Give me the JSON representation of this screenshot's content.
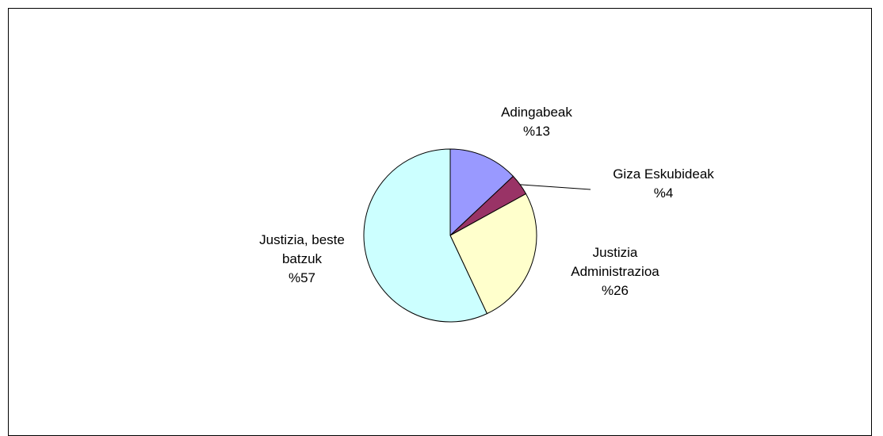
{
  "chart_data": {
    "type": "pie",
    "title": "",
    "start_angle_deg": 0,
    "direction": "clockwise",
    "slices": [
      {
        "name": "Adingabeak",
        "value": 13,
        "label": "%13",
        "color": "#9999ff"
      },
      {
        "name": "Giza Eskubideak",
        "value": 4,
        "label": "%4",
        "color": "#993366"
      },
      {
        "name": "Justizia Administrazioa",
        "value": 26,
        "label": "%26",
        "color": "#ffffcc"
      },
      {
        "name": "Justizia, beste batzuk",
        "value": 57,
        "label": "%57",
        "color": "#ccffff"
      }
    ],
    "legend": "none",
    "label_lines": [
      "Justizia",
      "Administrazioa"
    ],
    "label_lines_other": [
      "Justizia, beste",
      "batzuk"
    ]
  }
}
